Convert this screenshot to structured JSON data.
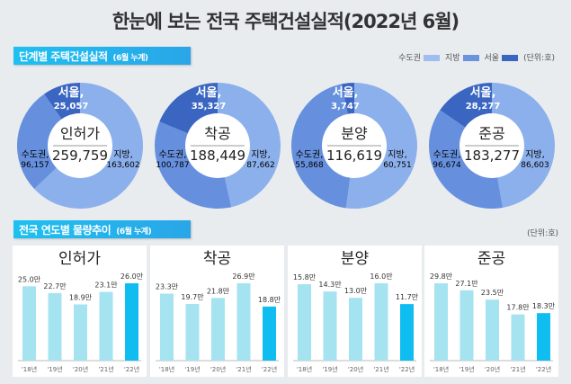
{
  "title": "한눈에 보는 전국 주택건설실적(2022년 6월)",
  "section1": {
    "label": "단계별 주택건설실적",
    "sub": "(6월 누계)"
  },
  "section2": {
    "label": "전국 연도별 물량추이",
    "sub": "(6월 누계)"
  },
  "legend": {
    "items": [
      {
        "label": "수도권",
        "color": "#9fbdef"
      },
      {
        "label": "지방",
        "color": "#6b94df"
      },
      {
        "label": "서울",
        "color": "#3a66c2"
      }
    ],
    "unit": "(단위:호)"
  },
  "unit2": "(단위:호)",
  "colors": {
    "jibang": "#8cb0ec",
    "sudo": "#6690de",
    "seoul": "#3a66c2",
    "bar": "#a6e3f0",
    "bar_current": "#10bdf0"
  },
  "chart_data": [
    {
      "type": "pie",
      "title": "인허가",
      "total": "259,759",
      "slices": [
        {
          "name": "지방",
          "label": "지방,",
          "value": 163602,
          "text": "163,602"
        },
        {
          "name": "수도권",
          "label": "수도권,",
          "value": 96157,
          "text": "96,157"
        },
        {
          "name": "서울",
          "label": "서울,",
          "value": 25057,
          "text": "25,057"
        }
      ]
    },
    {
      "type": "pie",
      "title": "착공",
      "total": "188,449",
      "slices": [
        {
          "name": "지방",
          "label": "지방,",
          "value": 87662,
          "text": "87,662"
        },
        {
          "name": "수도권",
          "label": "수도권,",
          "value": 100787,
          "text": "100,787"
        },
        {
          "name": "서울",
          "label": "서울,",
          "value": 35327,
          "text": "35,327"
        }
      ]
    },
    {
      "type": "pie",
      "title": "분양",
      "total": "116,619",
      "slices": [
        {
          "name": "지방",
          "label": "지방,",
          "value": 60751,
          "text": "60,751"
        },
        {
          "name": "수도권",
          "label": "수도권,",
          "value": 55868,
          "text": "55,868"
        },
        {
          "name": "서울",
          "label": "서울,",
          "value": 3747,
          "text": "3,747"
        }
      ]
    },
    {
      "type": "pie",
      "title": "준공",
      "total": "183,277",
      "slices": [
        {
          "name": "지방",
          "label": "지방,",
          "value": 86603,
          "text": "86,603"
        },
        {
          "name": "수도권",
          "label": "수도권,",
          "value": 96674,
          "text": "96,674"
        },
        {
          "name": "서울",
          "label": "서울,",
          "value": 28277,
          "text": "28,277"
        }
      ]
    },
    {
      "type": "bar",
      "title": "인허가",
      "categories": [
        "'18년",
        "'19년",
        "'20년",
        "'21년",
        "'22년"
      ],
      "values": [
        25.0,
        22.7,
        18.9,
        23.1,
        26.0
      ],
      "unit": "만"
    },
    {
      "type": "bar",
      "title": "착공",
      "categories": [
        "'18년",
        "'19년",
        "'20년",
        "'21년",
        "'22년"
      ],
      "values": [
        23.3,
        19.7,
        21.8,
        26.9,
        18.8
      ],
      "unit": "만"
    },
    {
      "type": "bar",
      "title": "분양",
      "categories": [
        "'18년",
        "'19년",
        "'20년",
        "'21년",
        "'22년"
      ],
      "values": [
        15.8,
        14.3,
        13.0,
        16.0,
        11.7
      ],
      "unit": "만"
    },
    {
      "type": "bar",
      "title": "준공",
      "categories": [
        "'18년",
        "'19년",
        "'20년",
        "'21년",
        "'22년"
      ],
      "values": [
        29.8,
        27.1,
        23.5,
        17.8,
        18.3
      ],
      "unit": "만"
    }
  ]
}
